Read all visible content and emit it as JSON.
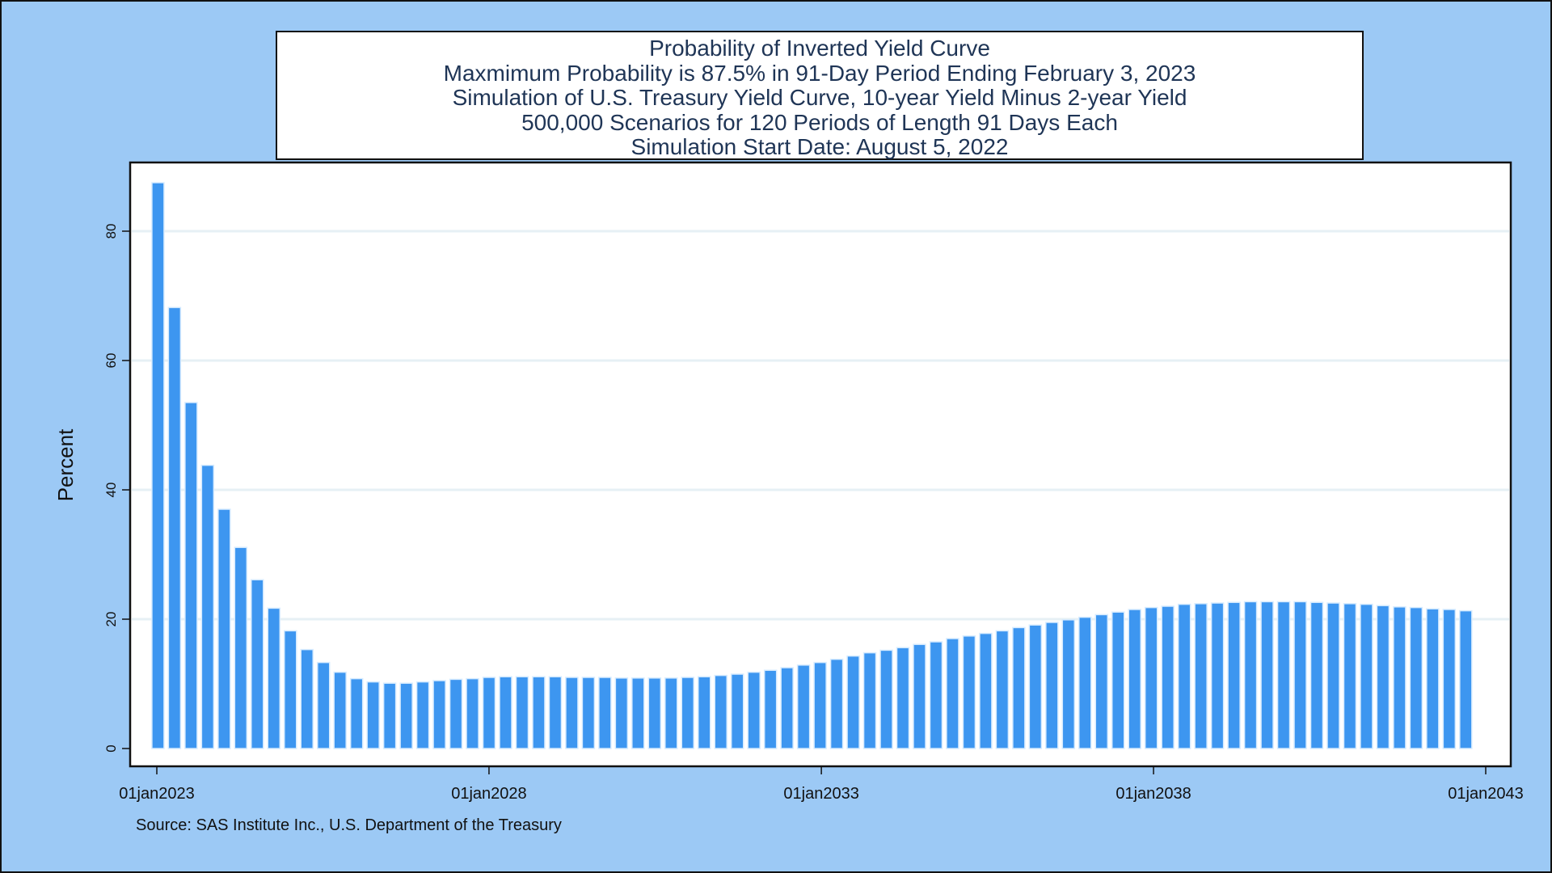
{
  "chart_data": {
    "type": "bar",
    "title_lines": [
      "Probability of Inverted Yield Curve",
      "Maxmimum Probability is 87.5% in 91-Day Period Ending February 3, 2023",
      "Simulation of U.S. Treasury Yield Curve, 10-year Yield Minus 2-year Yield",
      "500,000 Scenarios for 120 Periods of Length 91 Days Each",
      "Simulation Start Date: August 5, 2022"
    ],
    "ylabel": "Percent",
    "xlabel": "",
    "ylim": [
      0,
      90
    ],
    "yticks": [
      "0",
      "20",
      "40",
      "60",
      "80"
    ],
    "xlim": [
      "01jan2023",
      "01jan2043"
    ],
    "xticks": [
      "01jan2023",
      "01jan2028",
      "01jan2033",
      "01jan2038",
      "01jan2043"
    ],
    "grid": true,
    "legend": "none",
    "bar_color": "#3D96F0",
    "x": [
      "2023-02-03",
      "2023-05-05",
      "2023-08-04",
      "2023-11-03",
      "2024-02-02",
      "2024-05-03",
      "2024-08-02",
      "2024-11-01",
      "2025-01-31",
      "2025-05-02",
      "2025-08-01",
      "2025-10-31",
      "2026-01-30",
      "2026-05-01",
      "2026-07-31",
      "2026-10-30",
      "2027-01-29",
      "2027-04-30",
      "2027-07-30",
      "2027-10-29",
      "2028-01-28",
      "2028-04-28",
      "2028-07-28",
      "2028-10-27",
      "2029-01-26",
      "2029-04-27",
      "2029-07-27",
      "2029-10-26",
      "2030-01-25",
      "2030-04-26",
      "2030-07-26",
      "2030-10-25",
      "2031-01-24",
      "2031-04-25",
      "2031-07-25",
      "2031-10-24",
      "2032-01-23",
      "2032-04-23",
      "2032-07-23",
      "2032-10-22",
      "2033-01-21",
      "2033-04-22",
      "2033-07-22",
      "2033-10-21",
      "2034-01-20",
      "2034-04-21",
      "2034-07-21",
      "2034-10-20",
      "2035-01-19",
      "2035-04-20",
      "2035-07-20",
      "2035-10-19",
      "2036-01-18",
      "2036-04-18",
      "2036-07-18",
      "2036-10-17",
      "2037-01-16",
      "2037-04-17",
      "2037-07-17",
      "2037-10-16",
      "2038-01-15",
      "2038-04-16",
      "2038-07-16",
      "2038-10-15",
      "2039-01-14",
      "2039-04-15",
      "2039-07-15",
      "2039-10-14",
      "2040-01-13",
      "2040-04-13",
      "2040-07-13",
      "2040-10-12",
      "2041-01-11",
      "2041-04-12",
      "2041-07-12",
      "2041-10-11",
      "2042-01-10",
      "2042-04-11",
      "2042-07-11",
      "2042-10-10"
    ],
    "values": [
      87.5,
      68.2,
      53.5,
      43.8,
      37.0,
      31.1,
      26.1,
      21.7,
      18.2,
      15.3,
      13.3,
      11.8,
      10.8,
      10.3,
      10.1,
      10.1,
      10.3,
      10.5,
      10.7,
      10.8,
      11.0,
      11.1,
      11.1,
      11.1,
      11.1,
      11.0,
      11.0,
      11.0,
      10.9,
      10.9,
      10.9,
      10.9,
      11.0,
      11.1,
      11.3,
      11.5,
      11.8,
      12.1,
      12.5,
      12.9,
      13.3,
      13.8,
      14.3,
      14.8,
      15.2,
      15.6,
      16.1,
      16.5,
      17.0,
      17.4,
      17.8,
      18.2,
      18.7,
      19.1,
      19.5,
      19.9,
      20.3,
      20.7,
      21.1,
      21.5,
      21.8,
      22.0,
      22.3,
      22.4,
      22.5,
      22.6,
      22.7,
      22.7,
      22.7,
      22.7,
      22.6,
      22.5,
      22.4,
      22.3,
      22.1,
      21.9,
      21.8,
      21.6,
      21.5,
      21.3
    ]
  },
  "source_note": "Source: SAS Institute Inc., U.S. Department of the Treasury"
}
